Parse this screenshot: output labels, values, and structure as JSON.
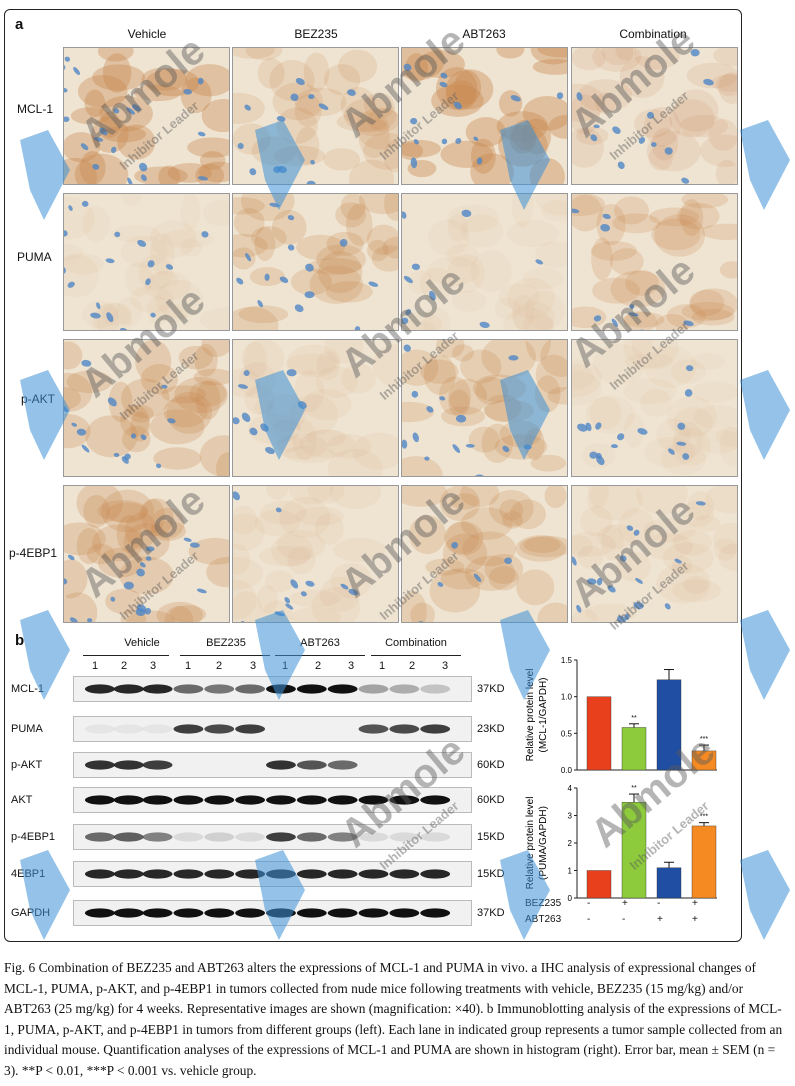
{
  "figure": {
    "panel_a_label": "a",
    "panel_b_label": "b",
    "columns": [
      "Vehicle",
      "BEZ235",
      "ABT263",
      "Combination"
    ],
    "rows": [
      "MCL-1",
      "PUMA",
      "p-AKT",
      "p-4EBP1"
    ],
    "wb_groups": [
      "Vehicle",
      "BEZ235",
      "ABT263",
      "Combination"
    ],
    "lane_numbers": [
      "1",
      "2",
      "3",
      "1",
      "2",
      "3",
      "1",
      "2",
      "3",
      "1",
      "2",
      "3"
    ],
    "blots": [
      {
        "label": "MCL-1",
        "kd": "37KD"
      },
      {
        "label": "PUMA",
        "kd": "23KD"
      },
      {
        "label": "p-AKT",
        "kd": "60KD"
      },
      {
        "label": "AKT",
        "kd": "60KD"
      },
      {
        "label": "p-4EBP1",
        "kd": "15KD"
      },
      {
        "label": "4EBP1",
        "kd": "15KD"
      },
      {
        "label": "GAPDH",
        "kd": "37KD"
      }
    ],
    "treatment": {
      "bez_label": "BEZ235",
      "abt_label": "ABT263",
      "bez_signs": [
        "-",
        "+",
        "-",
        "+"
      ],
      "abt_signs": [
        "-",
        "-",
        "+",
        "+"
      ]
    }
  },
  "chart_data": [
    {
      "type": "bar",
      "categories": [
        "Vehicle",
        "BEZ235",
        "ABT263",
        "Combination"
      ],
      "values": [
        1.0,
        0.58,
        1.23,
        0.26
      ],
      "errors": [
        0.0,
        0.05,
        0.14,
        0.08
      ],
      "significance": [
        "",
        "**",
        "",
        "***"
      ],
      "ylabel": "Relative protein level (MCL-1/GAPDH)",
      "ylabel_line1": "Relative protein level",
      "ylabel_line2": "(MCL-1/GAPDH)",
      "ylim": [
        0,
        1.5
      ],
      "yticks": [
        "0.0",
        "0.5",
        "1.0",
        "1.5"
      ],
      "colors": [
        "#e8401c",
        "#8dcb3c",
        "#1f4ea3",
        "#f58a22"
      ]
    },
    {
      "type": "bar",
      "categories": [
        "Vehicle",
        "BEZ235",
        "ABT263",
        "Combination"
      ],
      "values": [
        1.0,
        3.48,
        1.1,
        2.62
      ],
      "errors": [
        0.0,
        0.3,
        0.2,
        0.12
      ],
      "significance": [
        "",
        "**",
        "",
        "***"
      ],
      "ylabel": "Relative protein level (PUMA/GAPDH)",
      "ylabel_line1": "Relative protein level",
      "ylabel_line2": "(PUMA/GAPDH)",
      "ylim": [
        0,
        4
      ],
      "yticks": [
        "0",
        "1",
        "2",
        "3",
        "4"
      ],
      "colors": [
        "#e8401c",
        "#8dcb3c",
        "#1f4ea3",
        "#f58a22"
      ]
    }
  ],
  "caption": {
    "text": "Fig. 6 Combination of BEZ235 and ABT263 alters the expressions of MCL-1 and PUMA in vivo. a IHC analysis of expressional changes of MCL-1, PUMA, p-AKT, and p-4EBP1 in tumors collected from nude mice following treatments with vehicle, BEZ235 (15 mg/kg) and/or ABT263 (25 mg/kg) for 4 weeks. Representative images are shown (magnification: ×40). b Immunoblotting analysis of the expressions of MCL-1, PUMA, p-AKT, and p-4EBP1 in tumors from different groups (left). Each lane in indicated group represents a tumor sample collected from an individual mouse. Quantification analyses of the expressions of MCL-1 and PUMA are shown in histogram (right). Error bar, mean ± SEM (n = 3). **P < 0.01, ***P < 0.001 vs. vehicle group."
  },
  "watermark": {
    "brand": "Abmole",
    "tagline": "Inhibitor Leader"
  },
  "colors": {
    "stain_brown": "#c98a52",
    "stain_blue": "#4f86c6",
    "background_tissue": "#efe4d2",
    "watermark_blue": "#3d8fd6"
  }
}
